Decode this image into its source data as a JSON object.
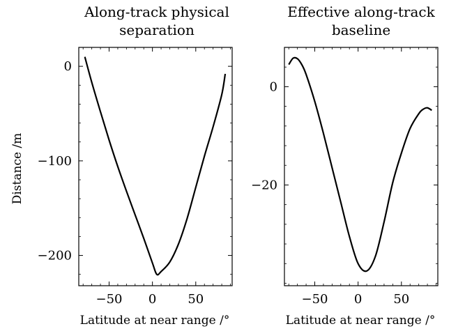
{
  "chart_data": [
    {
      "type": "line",
      "title_lines": [
        "Along-track physical",
        "separation"
      ],
      "xlabel": "Latitude at near range /°",
      "ylabel": "Distance /m",
      "xlim": [
        -85,
        92
      ],
      "ylim": [
        -232,
        20
      ],
      "x_ticks": [
        -50,
        0,
        50
      ],
      "x_tick_labels": [
        "−50",
        "0",
        "50"
      ],
      "y_ticks": [
        0,
        -100,
        -200
      ],
      "y_tick_labels": [
        "0",
        "−100",
        "−200"
      ],
      "grid": false,
      "series": [
        {
          "color": "#000000",
          "x": [
            -78,
            -70,
            -60,
            -50,
            -40,
            -30,
            -20,
            -10,
            0,
            5,
            10,
            20,
            30,
            40,
            50,
            60,
            70,
            80,
            84
          ],
          "y": [
            10,
            -17,
            -48,
            -78,
            -106,
            -132,
            -157,
            -182,
            -208,
            -220,
            -217,
            -207,
            -188,
            -161,
            -128,
            -95,
            -64,
            -30,
            -8
          ]
        }
      ]
    },
    {
      "type": "line",
      "title_lines": [
        "Effective along-track",
        "baseline"
      ],
      "xlabel": "Latitude at near range /°",
      "ylabel": "",
      "xlim": [
        -85,
        92
      ],
      "ylim": [
        -40.5,
        8
      ],
      "x_ticks": [
        -50,
        0,
        50
      ],
      "x_tick_labels": [
        "−50",
        "0",
        "50"
      ],
      "y_ticks": [
        0,
        -20
      ],
      "y_tick_labels": [
        "0",
        "−20"
      ],
      "grid": false,
      "series": [
        {
          "color": "#000000",
          "x": [
            -80,
            -75,
            -70,
            -65,
            -60,
            -50,
            -40,
            -30,
            -20,
            -10,
            0,
            10,
            20,
            30,
            40,
            50,
            60,
            70,
            75,
            80,
            85
          ],
          "y": [
            4.5,
            5.8,
            5.7,
            4.5,
            2.5,
            -3,
            -9.5,
            -16.5,
            -23.5,
            -30.5,
            -36,
            -37.5,
            -34.5,
            -27.5,
            -19.5,
            -13.5,
            -8.5,
            -5.5,
            -4.6,
            -4.3,
            -4.8
          ]
        }
      ]
    }
  ]
}
